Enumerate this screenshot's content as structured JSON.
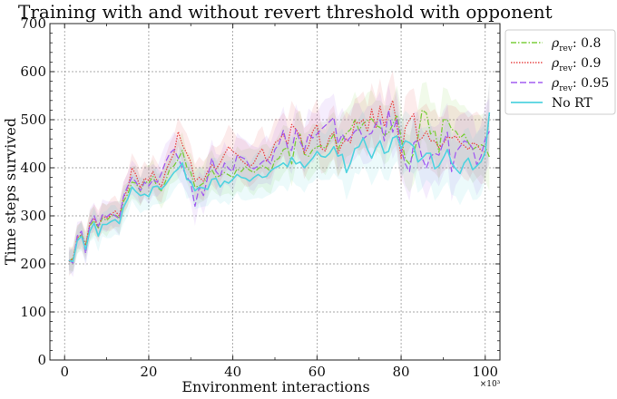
{
  "chart_data": {
    "type": "line",
    "title": "Training with and without revert threshold with opponent",
    "xlabel": "Environment interactions",
    "ylabel": "Time steps survived",
    "x_multiplier_label": "×10³",
    "xlim": [
      -3.5,
      103.5
    ],
    "ylim": [
      0,
      700
    ],
    "x_ticks": [
      0,
      20,
      40,
      60,
      80,
      100
    ],
    "y_ticks": [
      0,
      100,
      200,
      300,
      400,
      500,
      600,
      700
    ],
    "grid": true,
    "legend_position": "outside-right",
    "x": [
      1,
      2,
      3,
      4,
      5,
      6,
      7,
      8,
      9,
      10,
      11,
      12,
      13,
      14,
      15,
      16,
      17,
      18,
      19,
      20,
      21,
      22,
      23,
      24,
      25,
      26,
      27,
      28,
      29,
      30,
      31,
      32,
      33,
      34,
      35,
      36,
      37,
      38,
      39,
      40,
      41,
      42,
      43,
      44,
      45,
      46,
      47,
      48,
      49,
      50,
      51,
      52,
      53,
      54,
      55,
      56,
      57,
      58,
      59,
      60,
      61,
      62,
      63,
      64,
      65,
      66,
      67,
      68,
      69,
      70,
      71,
      72,
      73,
      74,
      75,
      76,
      77,
      78,
      79,
      80,
      81,
      82,
      83,
      84,
      85,
      86,
      87,
      88,
      89,
      90,
      91,
      92,
      93,
      94,
      95,
      96,
      97,
      98,
      99,
      100,
      101
    ],
    "series": [
      {
        "name_main": "ρ",
        "name_sub": "rev",
        "name_suffix": ": 0.8",
        "color": "#7ccd3c",
        "dash": "6,2,1.5,2",
        "values": [
          205,
          212,
          250,
          262,
          240,
          280,
          290,
          275,
          296,
          290,
          300,
          302,
          296,
          330,
          345,
          370,
          368,
          350,
          372,
          368,
          382,
          360,
          352,
          372,
          398,
          404,
          418,
          436,
          402,
          390,
          360,
          362,
          368,
          382,
          396,
          380,
          384,
          390,
          385,
          380,
          398,
          392,
          402,
          395,
          390,
          398,
          404,
          400,
          392,
          415,
          420,
          438,
          442,
          408,
          460,
          470,
          428,
          424,
          438,
          444,
          446,
          440,
          455,
          470,
          438,
          458,
          472,
          480,
          500,
          478,
          492,
          498,
          502,
          488,
          484,
          468,
          472,
          490,
          510,
          462,
          418,
          408,
          432,
          462,
          520,
          514,
          470,
          478,
          432,
          500,
          500,
          480,
          476,
          462,
          470,
          452,
          438,
          444,
          448,
          444,
          422
        ]
      },
      {
        "name_main": "ρ",
        "name_sub": "rev",
        "name_suffix": ": 0.9",
        "color": "#e84a4a",
        "dash": "1.5,1.5",
        "values": [
          205,
          210,
          255,
          260,
          238,
          285,
          295,
          278,
          300,
          295,
          302,
          310,
          300,
          338,
          355,
          400,
          385,
          358,
          378,
          374,
          392,
          372,
          360,
          392,
          412,
          430,
          475,
          448,
          430,
          412,
          372,
          380,
          372,
          392,
          406,
          398,
          410,
          428,
          444,
          434,
          428,
          416,
          408,
          402,
          410,
          428,
          440,
          414,
          426,
          452,
          458,
          470,
          448,
          490,
          480,
          466,
          430,
          445,
          476,
          490,
          440,
          435,
          465,
          474,
          430,
          450,
          460,
          452,
          496,
          492,
          500,
          475,
          522,
          484,
          528,
          486,
          515,
          540,
          488,
          420,
          484,
          500,
          512,
          456,
          462,
          476,
          456,
          456,
          442,
          450,
          464,
          462,
          466,
          452,
          446,
          438,
          452,
          448,
          436,
          432,
          510
        ]
      },
      {
        "name_main": "ρ",
        "name_sub": "rev",
        "name_suffix": ": 0.95",
        "color": "#a25cf0",
        "dash": "7,3",
        "values": [
          208,
          202,
          258,
          268,
          222,
          282,
          300,
          278,
          302,
          298,
          305,
          300,
          294,
          340,
          362,
          380,
          370,
          352,
          370,
          362,
          375,
          370,
          388,
          412,
          430,
          438,
          420,
          400,
          382,
          368,
          320,
          360,
          342,
          380,
          420,
          392,
          382,
          410,
          398,
          392,
          426,
          422,
          418,
          402,
          398,
          404,
          412,
          418,
          408,
          438,
          450,
          478,
          442,
          436,
          480,
          454,
          436,
          470,
          462,
          470,
          480,
          488,
          496,
          505,
          450,
          470,
          454,
          464,
          476,
          482,
          460,
          468,
          472,
          492,
          500,
          456,
          520,
          474,
          502,
          438,
          408,
          392,
          452,
          458,
          420,
          400,
          424,
          430,
          426,
          452,
          474,
          392,
          432,
          444,
          456,
          452,
          440,
          406,
          424,
          460,
          476
        ]
      },
      {
        "name_main": "No RT",
        "name_sub": "",
        "name_suffix": "",
        "color": "#4fd3df",
        "dash": "",
        "values": [
          207,
          205,
          248,
          258,
          230,
          268,
          285,
          258,
          282,
          282,
          288,
          292,
          284,
          318,
          335,
          360,
          350,
          342,
          345,
          340,
          360,
          362,
          355,
          365,
          378,
          390,
          398,
          410,
          376,
          372,
          352,
          360,
          358,
          355,
          376,
          378,
          360,
          372,
          368,
          376,
          386,
          380,
          378,
          372,
          380,
          386,
          380,
          382,
          394,
          400,
          404,
          410,
          402,
          422,
          408,
          412,
          400,
          410,
          420,
          434,
          424,
          422,
          430,
          444,
          424,
          428,
          390,
          410,
          440,
          444,
          462,
          438,
          420,
          442,
          456,
          430,
          434,
          462,
          466,
          440,
          456,
          452,
          444,
          412,
          420,
          430,
          430,
          398,
          404,
          420,
          438,
          410,
          398,
          388,
          410,
          420,
          396,
          404,
          412,
          432,
          515
        ]
      }
    ]
  }
}
